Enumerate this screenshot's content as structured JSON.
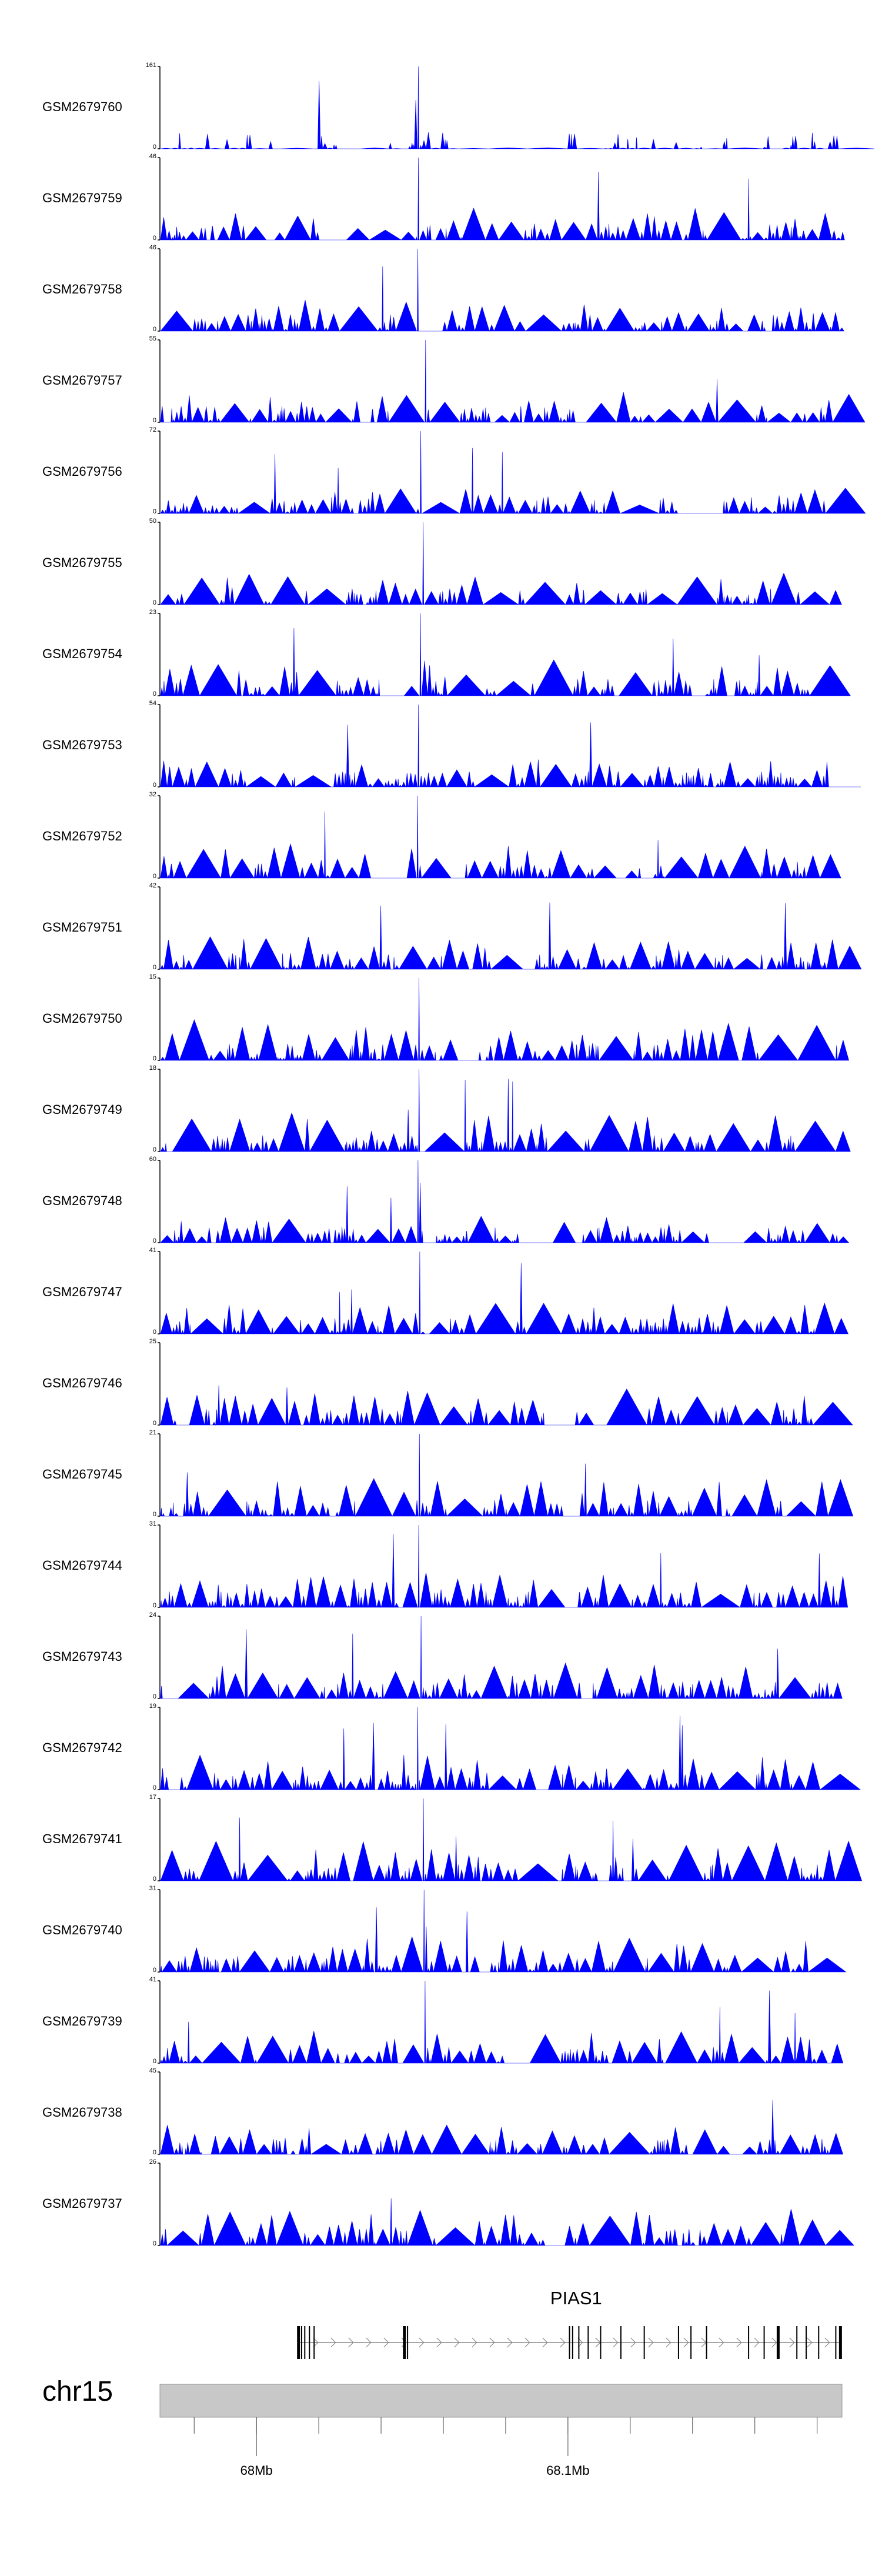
{
  "chart_data": {
    "type": "area",
    "title": "",
    "xlabel": "",
    "ylabel": "",
    "chromosome": "chr15",
    "x_axis": {
      "unit": "Mb",
      "range": [
        67.969,
        68.188
      ],
      "labeled_ticks": [
        {
          "value": 68.0,
          "label": "68Mb"
        },
        {
          "value": 68.1,
          "label": "68.1Mb"
        }
      ],
      "minor_ticks": [
        67.98,
        68.0,
        68.02,
        68.04,
        68.06,
        68.08,
        68.1,
        68.12,
        68.14,
        68.16,
        68.18
      ]
    },
    "tracks": [
      {
        "name": "GSM2679760",
        "ymin_label": "0",
        "ymax_label": "161",
        "ymax": 161
      },
      {
        "name": "GSM2679759",
        "ymin_label": "0",
        "ymax_label": "46",
        "ymax": 46
      },
      {
        "name": "GSM2679758",
        "ymin_label": "0",
        "ymax_label": "46",
        "ymax": 46
      },
      {
        "name": "GSM2679757",
        "ymin_label": "0",
        "ymax_label": "55",
        "ymax": 55
      },
      {
        "name": "GSM2679756",
        "ymin_label": "0",
        "ymax_label": "72",
        "ymax": 72
      },
      {
        "name": "GSM2679755",
        "ymin_label": "0",
        "ymax_label": "50",
        "ymax": 50
      },
      {
        "name": "GSM2679754",
        "ymin_label": "0",
        "ymax_label": "23",
        "ymax": 23
      },
      {
        "name": "GSM2679753",
        "ymin_label": "0",
        "ymax_label": "54",
        "ymax": 54
      },
      {
        "name": "GSM2679752",
        "ymin_label": "0",
        "ymax_label": "32",
        "ymax": 32
      },
      {
        "name": "GSM2679751",
        "ymin_label": "0",
        "ymax_label": "42",
        "ymax": 42
      },
      {
        "name": "GSM2679750",
        "ymin_label": "0",
        "ymax_label": "15",
        "ymax": 15
      },
      {
        "name": "GSM2679749",
        "ymin_label": "0",
        "ymax_label": "18",
        "ymax": 18
      },
      {
        "name": "GSM2679748",
        "ymin_label": "0",
        "ymax_label": "60",
        "ymax": 60
      },
      {
        "name": "GSM2679747",
        "ymin_label": "0",
        "ymax_label": "41",
        "ymax": 41
      },
      {
        "name": "GSM2679746",
        "ymin_label": "0",
        "ymax_label": "25",
        "ymax": 25
      },
      {
        "name": "GSM2679745",
        "ymin_label": "0",
        "ymax_label": "21",
        "ymax": 21
      },
      {
        "name": "GSM2679744",
        "ymin_label": "0",
        "ymax_label": "31",
        "ymax": 31
      },
      {
        "name": "GSM2679743",
        "ymin_label": "0",
        "ymax_label": "24",
        "ymax": 24
      },
      {
        "name": "GSM2679742",
        "ymin_label": "0",
        "ymax_label": "19",
        "ymax": 19
      },
      {
        "name": "GSM2679741",
        "ymin_label": "0",
        "ymax_label": "17",
        "ymax": 17
      },
      {
        "name": "GSM2679740",
        "ymin_label": "0",
        "ymax_label": "31",
        "ymax": 31
      },
      {
        "name": "GSM2679739",
        "ymin_label": "0",
        "ymax_label": "41",
        "ymax": 41
      },
      {
        "name": "GSM2679738",
        "ymin_label": "0",
        "ymax_label": "45",
        "ymax": 45
      },
      {
        "name": "GSM2679737",
        "ymin_label": "0",
        "ymax_label": "26",
        "ymax": 26
      }
    ],
    "gene": {
      "name": "PIAS1",
      "strand": "+",
      "start": 68.0135,
      "end": 68.188,
      "exons": [
        68.0135,
        68.0145,
        68.0155,
        68.017,
        68.0185,
        68.0475,
        68.0485,
        68.1005,
        68.1015,
        68.1035,
        68.1065,
        68.1105,
        68.117,
        68.1245,
        68.1355,
        68.1395,
        68.1445,
        68.158,
        68.163,
        68.1675,
        68.1735,
        68.1765,
        68.1805,
        68.186,
        68.1875
      ]
    },
    "colors": {
      "signal": "#0000ff",
      "axis": "#000000",
      "ideogram": "#c8c8c8",
      "gene": "#000000"
    }
  }
}
